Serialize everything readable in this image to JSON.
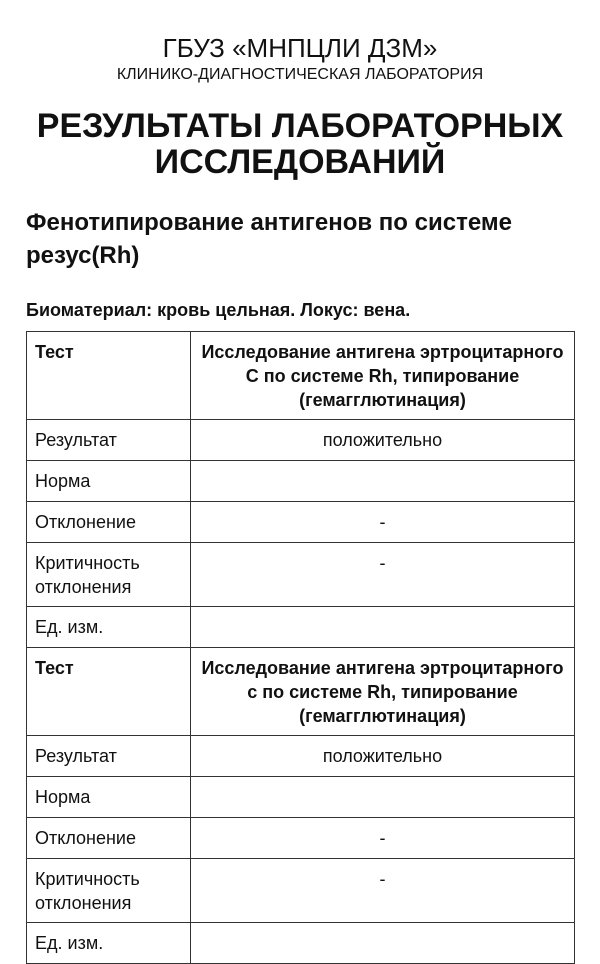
{
  "header": {
    "org": "ГБУЗ «МНПЦЛИ ДЗМ»",
    "lab": "КЛИНИКО-ДИАГНОСТИЧЕСКАЯ ЛАБОРАТОРИЯ",
    "title": "РЕЗУЛЬТАТЫ ЛАБОРАТОРНЫХ ИССЛЕДОВАНИЙ"
  },
  "section": {
    "title": "Фенотипирование антигенов по системе резус(Rh)",
    "meta": "Биоматериал: кровь цельная. Локус: вена."
  },
  "labels": {
    "test": "Тест",
    "result": "Результат",
    "norm": "Норма",
    "deviation": "Отклонение",
    "criticality": "Критичность отклонения",
    "unit": "Ед. изм."
  },
  "tests": [
    {
      "name": "Исследование антигена эртроцитарного С по системе Rh, типирование (гемагглютинация)",
      "result": "положительно",
      "norm": "",
      "deviation": "-",
      "criticality": "-",
      "unit": ""
    },
    {
      "name": "Исследование антигена эртроцитарного с по системе Rh, типирование (гемагглютинация)",
      "result": "положительно",
      "norm": "",
      "deviation": "-",
      "criticality": "-",
      "unit": ""
    }
  ]
}
